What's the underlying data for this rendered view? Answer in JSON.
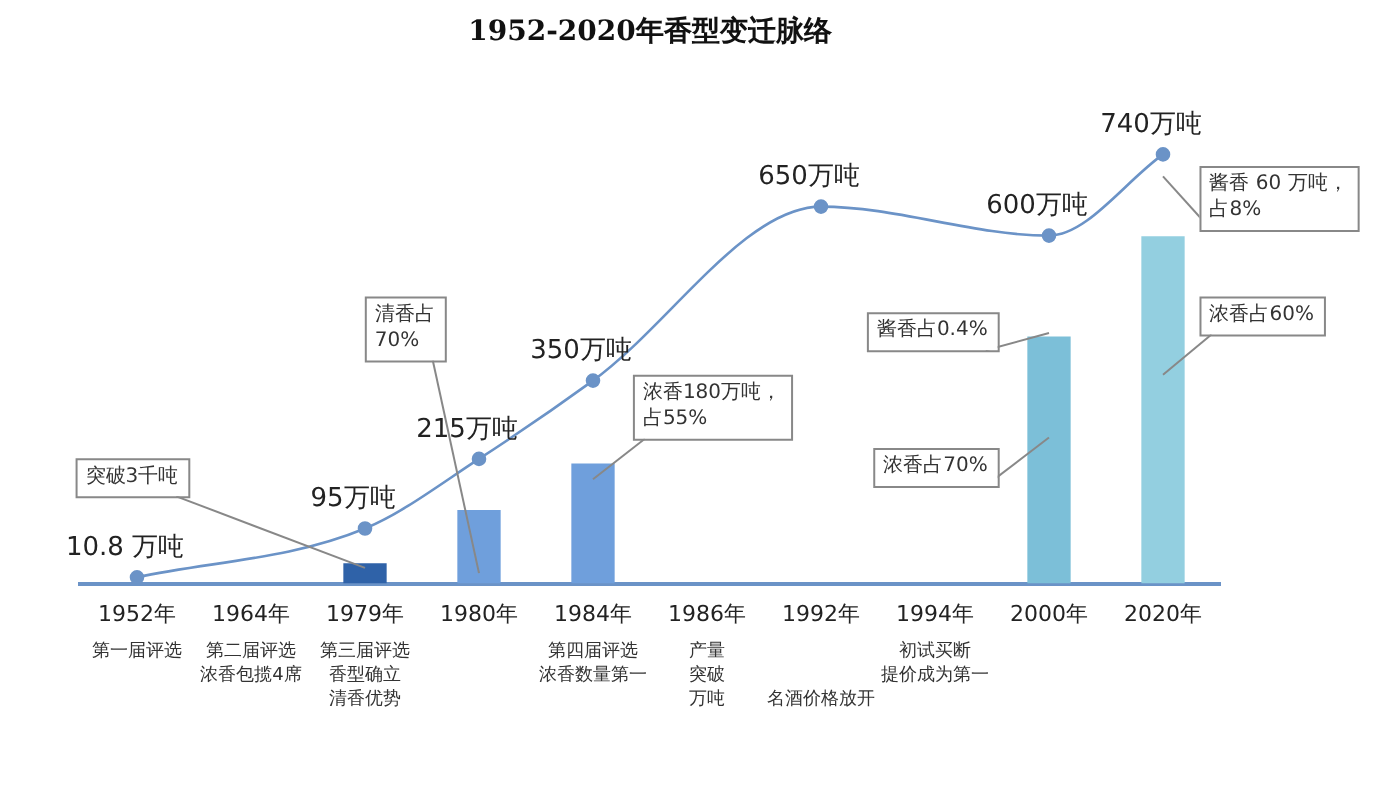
{
  "chart_data": {
    "type": "line",
    "title": "1952-2020年香型变迁脉络",
    "tick_labels": "x",
    "marker": "circle",
    "legend": false,
    "grid": false,
    "categories": [
      "1952年",
      "1964年",
      "1979年",
      "1980年",
      "1984年",
      "1986年",
      "1992年",
      "1994年",
      "2000年",
      "2020年"
    ],
    "series": [
      {
        "type": "bar",
        "colors": [
          null,
          null,
          "#2f62a8",
          "#6f9fdc",
          "#6f9fdc",
          null,
          null,
          null,
          "#7cbfd8",
          "#93cfe0"
        ],
        "values": [
          null,
          null,
          35,
          127,
          207,
          null,
          null,
          null,
          426,
          599
        ]
      },
      {
        "color": "#6b93c7",
        "values": [
          10.8,
          null,
          95,
          215,
          350,
          null,
          650,
          null,
          600,
          740
        ],
        "value_labels": [
          "10.8 万吨",
          null,
          "95万吨",
          "215万吨",
          "350万吨",
          null,
          "650万吨",
          null,
          "600万吨",
          "740万吨"
        ]
      }
    ],
    "annotations": [
      "突破3千吨",
      "清香占70%",
      "浓香180万吨，占55%",
      "酱香占0.4%",
      "浓香占70%",
      "酱香 60 万吨，占8%",
      "浓香占60%",
      "第一届评选",
      "第二届评选浓香包揽4席",
      "第三届评选香型确立清香优势",
      "第四届评选浓香数量第一",
      "产量突破万吨",
      "初试买断提价成为第一",
      "名酒价格放开"
    ]
  }
}
